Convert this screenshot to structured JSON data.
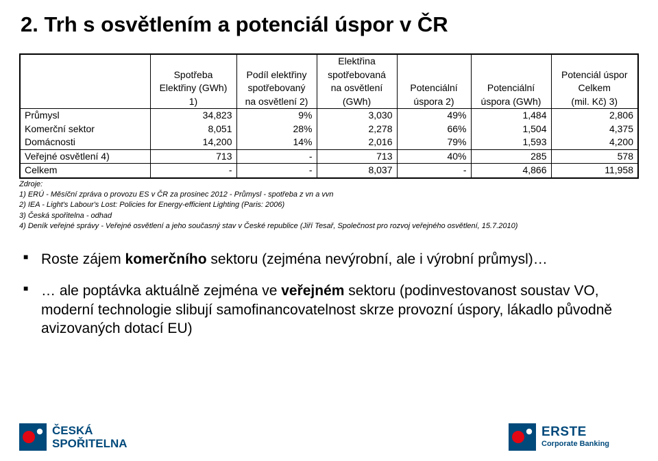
{
  "title": "2. Trh s osvětlením a potenciál úspor v ČR",
  "table": {
    "columns": [
      {
        "key": "label",
        "header_lines": [
          "",
          "",
          ""
        ],
        "width": "21%",
        "align": "left"
      },
      {
        "key": "c1",
        "header_lines": [
          "Spotřeba",
          "Elektřiny (GWh)",
          "1)"
        ],
        "width": "14%",
        "align": "right"
      },
      {
        "key": "c2",
        "header_lines": [
          "Podíl elektřiny",
          "spotřebovaný",
          "na osvětlení 2)"
        ],
        "width": "13%",
        "align": "right"
      },
      {
        "key": "c3",
        "header_lines": [
          "Elektřina",
          "spotřebovaná",
          "na osvětlení",
          "(GWh)"
        ],
        "width": "13%",
        "align": "right"
      },
      {
        "key": "c4",
        "header_lines": [
          "",
          "Potenciální",
          "úspora 2)"
        ],
        "width": "12%",
        "align": "right"
      },
      {
        "key": "c5",
        "header_lines": [
          "",
          "Potenciální",
          "úspora (GWh)"
        ],
        "width": "13%",
        "align": "right"
      },
      {
        "key": "c6",
        "header_lines": [
          "Potenciál úspor",
          "Celkem",
          "(mil. Kč) 3)"
        ],
        "width": "14%",
        "align": "right"
      }
    ],
    "groups": [
      {
        "rows": [
          {
            "label": "Průmysl",
            "c1": "34,823",
            "c2": "9%",
            "c3": "3,030",
            "c4": "49%",
            "c5": "1,484",
            "c6": "2,806"
          },
          {
            "label": "Komerční sektor",
            "c1": "8,051",
            "c2": "28%",
            "c3": "2,278",
            "c4": "66%",
            "c5": "1,504",
            "c6": "4,375"
          },
          {
            "label": "Domácnosti",
            "c1": "14,200",
            "c2": "14%",
            "c3": "2,016",
            "c4": "79%",
            "c5": "1,593",
            "c6": "4,200"
          }
        ]
      },
      {
        "rows": [
          {
            "label": "Veřejné osvětlení 4)",
            "c1": "713",
            "c2": "-",
            "c3": "713",
            "c4": "40%",
            "c5": "285",
            "c6": "578"
          }
        ]
      },
      {
        "rows": [
          {
            "label": "Celkem",
            "c1": "-",
            "c2": "-",
            "c3": "8,037",
            "c4": "-",
            "c5": "4,866",
            "c6": "11,958"
          }
        ]
      }
    ]
  },
  "sources": {
    "heading": "Zdroje:",
    "lines": [
      "1) ERÚ - Měsíční zpráva o provozu ES v ČR za prosinec 2012 - Průmysl - spotřeba z vn a vvn",
      "2) IEA - Light's Labour's Lost: Policies for Energy-efficient Lighting (Paris: 2006)",
      "3) Česká spořitelna - odhad",
      "4) Deník veřejné správy - Veřejné osvětlení a jeho současný stav v České republice (Jiří Tesař, Společnost pro rozvoj veřejného osvětlení, 15.7.2010)"
    ]
  },
  "bullets": [
    [
      {
        "t": "Roste zájem ",
        "b": false
      },
      {
        "t": "komerčního ",
        "b": true
      },
      {
        "t": "sektoru (zejména nevýrobní, ale i výrobní průmysl)…",
        "b": false
      }
    ],
    [
      {
        "t": "… ale poptávka aktuálně zejména ve ",
        "b": false
      },
      {
        "t": "veřejném ",
        "b": true
      },
      {
        "t": "sektoru (podinvestovanost soustav VO, moderní technologie slibují samofinancovatelnost skrze provozní úspory, lákadlo původně avizovaných dotací EU)",
        "b": false
      }
    ]
  ],
  "logos": {
    "sporitelna": {
      "line1": "ČESKÁ",
      "line2": "SPOŘITELNA",
      "blue": "#00497b",
      "red": "#e30613"
    },
    "erste": {
      "line1": "ERSTE",
      "line2": "Corporate Banking",
      "blue": "#00497b",
      "red": "#e30613"
    }
  }
}
